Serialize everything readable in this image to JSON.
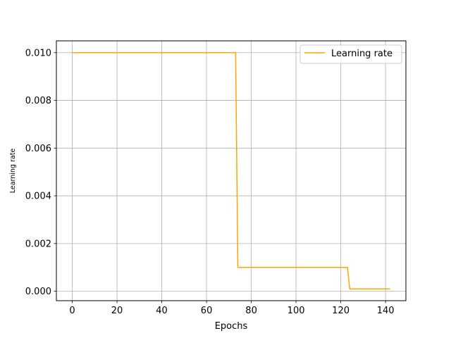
{
  "chart_data": {
    "type": "line",
    "title": "",
    "xlabel": "Epochs",
    "ylabel": "Learning rate",
    "xlim": [
      -7.1,
      149.1
    ],
    "ylim": [
      -0.000395,
      0.010495
    ],
    "xticks": [
      0,
      20,
      40,
      60,
      80,
      100,
      120,
      140
    ],
    "xtick_labels": [
      "0",
      "20",
      "40",
      "60",
      "80",
      "100",
      "120",
      "140"
    ],
    "yticks": [
      0.0,
      0.002,
      0.004,
      0.006,
      0.008,
      0.01
    ],
    "ytick_labels": [
      "0.000",
      "0.002",
      "0.004",
      "0.006",
      "0.008",
      "0.010"
    ],
    "grid": true,
    "legend_position": "upper right",
    "series": [
      {
        "name": "Learning rate",
        "color": "#ffa500",
        "x": [
          0,
          73,
          74,
          123,
          124,
          142
        ],
        "y": [
          0.01,
          0.01,
          0.001,
          0.001,
          0.0001,
          0.0001
        ]
      }
    ]
  }
}
